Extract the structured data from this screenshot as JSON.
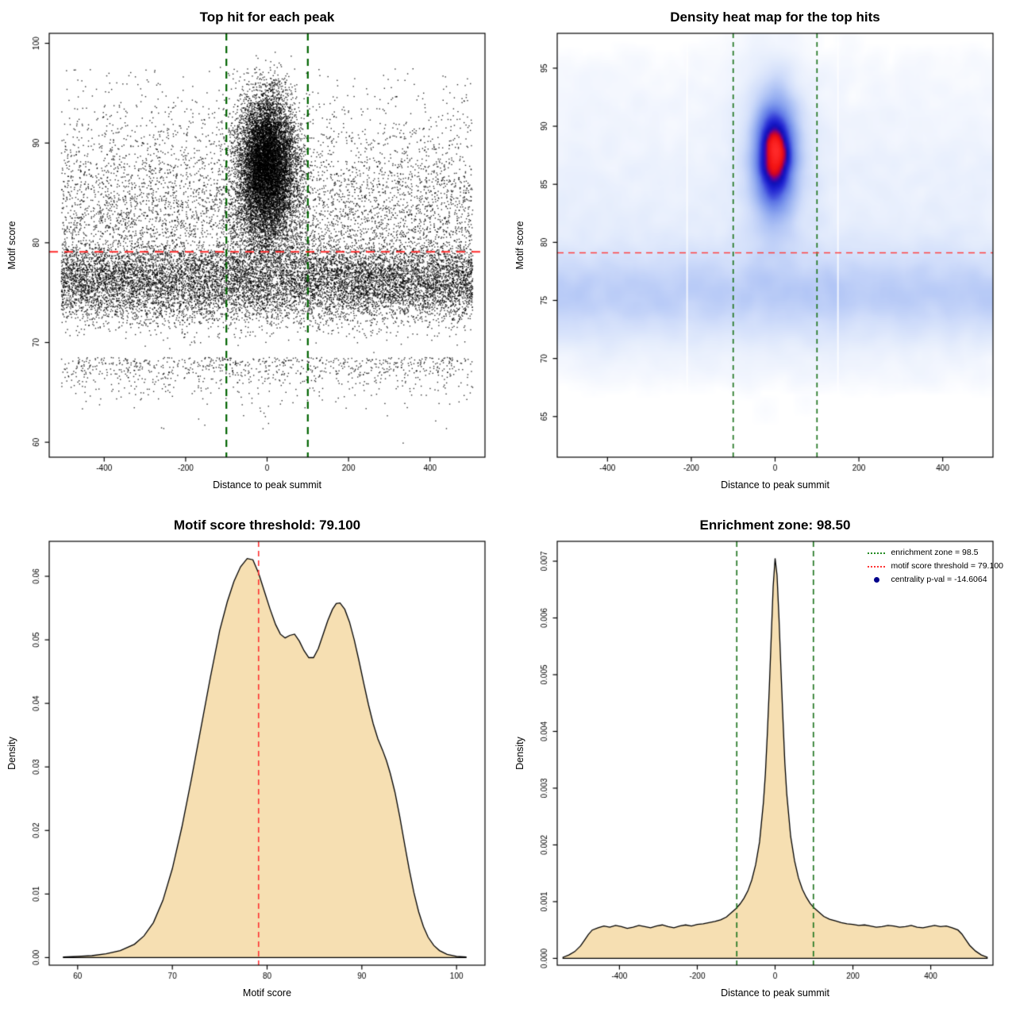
{
  "page": {
    "background": "#ffffff"
  },
  "stats": {
    "motif_score_threshold": 79.1,
    "enrichment_zone": 98.5,
    "centrality_p_val": -14.6064
  },
  "chart_data": [
    {
      "type": "scatter",
      "title": "Top hit for each peak",
      "xlabel": "Distance to peak summit",
      "ylabel": "Motif score",
      "xlim": [
        -535,
        535
      ],
      "ylim": [
        58.5,
        101
      ],
      "xticks": {
        "values": [
          -400,
          -200,
          0,
          200,
          400
        ],
        "labels": [
          "-400",
          "-200",
          "0",
          "200",
          "400"
        ]
      },
      "yticks": {
        "values": [
          60,
          70,
          80,
          90,
          100
        ],
        "labels": [
          "60",
          "70",
          "80",
          "90",
          "100"
        ]
      },
      "point_color": "#000000",
      "point_alpha": 0.8,
      "point_size": 1.4,
      "ref_lines": {
        "vlines": [
          {
            "x": -100,
            "color": "#006400",
            "width": 2.2,
            "dash": [
              9,
              7
            ]
          },
          {
            "x": 100,
            "color": "#006400",
            "width": 2.2,
            "dash": [
              9,
              7
            ]
          }
        ],
        "hlines": [
          {
            "y": 79.1,
            "color": "#ff2a2a",
            "width": 2,
            "dash": [
              11,
              8
            ]
          }
        ]
      },
      "generator": {
        "seed": 1234,
        "components": [
          {
            "name": "central-cluster",
            "n": 8500,
            "x": {
              "dist": "normal",
              "mean": 0,
              "sd": 33
            },
            "y": {
              "dist": "normal",
              "mean": 88.2,
              "sd": 3.3
            },
            "y_range": [
              79.5,
              99.7
            ]
          },
          {
            "name": "central-spread",
            "n": 2500,
            "x": {
              "dist": "normal",
              "mean": 0,
              "sd": 45
            },
            "y": {
              "dist": "normal",
              "mean": 84,
              "sd": 4.5
            },
            "y_range": [
              78,
              99
            ]
          },
          {
            "name": "background-band",
            "n": 12500,
            "x": {
              "dist": "uniform",
              "min": -505,
              "max": 505
            },
            "y": {
              "dist": "normal",
              "mean": 76.3,
              "sd": 2.1
            },
            "y_range": [
              68.5,
              80.5
            ]
          },
          {
            "name": "upper-background",
            "n": 4200,
            "x": {
              "dist": "uniform",
              "min": -505,
              "max": 505
            },
            "y": {
              "dist": "normal",
              "mean": 80,
              "sd": 6.8
            },
            "y_range": [
              80.5,
              97.6
            ]
          },
          {
            "name": "lower-background",
            "n": 900,
            "x": {
              "dist": "uniform",
              "min": -505,
              "max": 505
            },
            "y": {
              "dist": "normal",
              "mean": 69.5,
              "sd": 2.2
            },
            "y_range": [
              62.5,
              68.5
            ]
          },
          {
            "name": "outliers",
            "n": 18,
            "x": {
              "dist": "uniform",
              "min": -490,
              "max": 490
            },
            "y": {
              "dist": "uniform",
              "min": 59.8,
              "max": 65.5
            }
          }
        ]
      }
    },
    {
      "type": "heatmap",
      "title": "Density heat map for the top hits",
      "xlabel": "Distance to peak summit",
      "ylabel": "Motif score",
      "xlim": [
        -520,
        520
      ],
      "ylim": [
        61.5,
        98
      ],
      "xticks": {
        "values": [
          -400,
          -200,
          0,
          200,
          400
        ],
        "labels": [
          "-400",
          "-200",
          "0",
          "200",
          "400"
        ]
      },
      "yticks": {
        "values": [
          65,
          70,
          75,
          80,
          85,
          90,
          95
        ],
        "labels": [
          "65",
          "70",
          "75",
          "80",
          "85",
          "90",
          "95"
        ]
      },
      "grid": {
        "nx": 160,
        "ny": 140
      },
      "blur_radius": 2,
      "blur_passes": 2,
      "gamma": 0.5,
      "colormap": [
        [
          0.0,
          "#ffffff"
        ],
        [
          0.07,
          "#f4f7fe"
        ],
        [
          0.18,
          "#e4ecfc"
        ],
        [
          0.3,
          "#cfdcfa"
        ],
        [
          0.4,
          "#b5c8f6"
        ],
        [
          0.5,
          "#97aff1"
        ],
        [
          0.58,
          "#7b96ec"
        ],
        [
          0.66,
          "#5d75e5"
        ],
        [
          0.72,
          "#3a46da"
        ],
        [
          0.78,
          "#1c1ecf"
        ],
        [
          0.83,
          "#0f0fb4"
        ],
        [
          0.87,
          "#61009b"
        ],
        [
          0.9,
          "#c00030"
        ],
        [
          0.94,
          "#f01111"
        ],
        [
          1.0,
          "#ff2a2a"
        ]
      ],
      "white_gaps": [
        -210,
        150
      ],
      "ref_lines": {
        "vlines": [
          {
            "x": -100,
            "color": "#227722",
            "width": 1.7,
            "dash": [
              6,
              5
            ]
          },
          {
            "x": 100,
            "color": "#227722",
            "width": 1.7,
            "dash": [
              6,
              5
            ]
          }
        ],
        "hlines": [
          {
            "y": 79.1,
            "color": "#ff4040",
            "width": 1.3,
            "dash": [
              8,
              6
            ]
          }
        ]
      },
      "generator": {
        "seed": 987,
        "components": [
          {
            "name": "core",
            "n": 9000,
            "x": {
              "dist": "normal",
              "mean": 0,
              "sd": 27
            },
            "y": {
              "dist": "normal",
              "mean": 87.6,
              "sd": 2.9
            }
          },
          {
            "name": "core-halo",
            "n": 3000,
            "x": {
              "dist": "normal",
              "mean": 0,
              "sd": 60
            },
            "y": {
              "dist": "normal",
              "mean": 85.5,
              "sd": 5.5
            }
          },
          {
            "name": "low-band",
            "n": 14000,
            "x": {
              "dist": "uniform",
              "min": -520,
              "max": 520
            },
            "y": {
              "dist": "normal",
              "mean": 75.6,
              "sd": 2.3
            }
          },
          {
            "name": "haze",
            "n": 7000,
            "x": {
              "dist": "uniform",
              "min": -520,
              "max": 520
            },
            "y": {
              "dist": "normal",
              "mean": 81,
              "sd": 7
            },
            "y_range": [
              68,
              96
            ]
          }
        ]
      }
    },
    {
      "type": "density",
      "title": "Motif score threshold: 79.100",
      "xlabel": "Motif score",
      "ylabel": "Density",
      "xlim": [
        57,
        103
      ],
      "ylim": [
        -0.0012,
        0.0655
      ],
      "xticks": {
        "values": [
          60,
          70,
          80,
          90,
          100
        ],
        "labels": [
          "60",
          "70",
          "80",
          "90",
          "100"
        ]
      },
      "yticks": {
        "values": [
          0,
          0.01,
          0.02,
          0.03,
          0.04,
          0.05,
          0.06
        ],
        "labels": [
          "0.00",
          "0.01",
          "0.02",
          "0.03",
          "0.04",
          "0.05",
          "0.06"
        ]
      },
      "fill": "#f6dfb2",
      "stroke": "#000000",
      "ref_lines": {
        "vlines": [
          {
            "x": 79.1,
            "color": "#ff3333",
            "width": 1.6,
            "dash": [
              7,
              5
            ]
          }
        ]
      },
      "points": [
        [
          58.5,
          0.0001
        ],
        [
          60,
          0.0002
        ],
        [
          61.5,
          0.0003
        ],
        [
          63,
          0.0006
        ],
        [
          64.5,
          0.0011
        ],
        [
          66,
          0.0021
        ],
        [
          67,
          0.0034
        ],
        [
          68,
          0.0055
        ],
        [
          69,
          0.009
        ],
        [
          70,
          0.014
        ],
        [
          71,
          0.0205
        ],
        [
          72,
          0.028
        ],
        [
          73,
          0.036
        ],
        [
          74,
          0.044
        ],
        [
          75,
          0.0515
        ],
        [
          75.8,
          0.056
        ],
        [
          76.5,
          0.0592
        ],
        [
          77.2,
          0.0615
        ],
        [
          77.9,
          0.0628
        ],
        [
          78.5,
          0.0626
        ],
        [
          79.1,
          0.0605
        ],
        [
          79.7,
          0.0577
        ],
        [
          80.3,
          0.0549
        ],
        [
          80.9,
          0.0524
        ],
        [
          81.4,
          0.0509
        ],
        [
          81.9,
          0.0503
        ],
        [
          82.4,
          0.0507
        ],
        [
          82.9,
          0.0509
        ],
        [
          83.4,
          0.0498
        ],
        [
          83.9,
          0.0483
        ],
        [
          84.4,
          0.0472
        ],
        [
          84.9,
          0.0472
        ],
        [
          85.4,
          0.0486
        ],
        [
          85.9,
          0.0508
        ],
        [
          86.4,
          0.053
        ],
        [
          86.9,
          0.0548
        ],
        [
          87.3,
          0.0557
        ],
        [
          87.7,
          0.0558
        ],
        [
          88.2,
          0.0548
        ],
        [
          88.7,
          0.0528
        ],
        [
          89.2,
          0.05
        ],
        [
          89.7,
          0.0467
        ],
        [
          90.2,
          0.0432
        ],
        [
          90.7,
          0.0398
        ],
        [
          91.2,
          0.0368
        ],
        [
          91.7,
          0.0344
        ],
        [
          92.2,
          0.0326
        ],
        [
          92.6,
          0.031
        ],
        [
          93,
          0.029
        ],
        [
          93.5,
          0.026
        ],
        [
          94,
          0.0222
        ],
        [
          94.5,
          0.018
        ],
        [
          95,
          0.0139
        ],
        [
          95.5,
          0.0102
        ],
        [
          96,
          0.0072
        ],
        [
          96.5,
          0.0049
        ],
        [
          97,
          0.0032
        ],
        [
          97.6,
          0.0019
        ],
        [
          98.2,
          0.0011
        ],
        [
          99,
          0.0005
        ],
        [
          100,
          0.0002
        ],
        [
          101,
          0.0001
        ]
      ]
    },
    {
      "type": "density",
      "title": "Enrichment zone: 98.50",
      "xlabel": "Distance to peak summit",
      "ylabel": "Density",
      "xlim": [
        -560,
        560
      ],
      "ylim": [
        -0.00012,
        0.00735
      ],
      "xticks": {
        "values": [
          -400,
          -200,
          0,
          200,
          400
        ],
        "labels": [
          "-400",
          "-200",
          "0",
          "200",
          "400"
        ]
      },
      "yticks": {
        "values": [
          0,
          0.001,
          0.002,
          0.003,
          0.004,
          0.005,
          0.006,
          0.007
        ],
        "labels": [
          "0.000",
          "0.001",
          "0.002",
          "0.003",
          "0.004",
          "0.005",
          "0.006",
          "0.007"
        ]
      },
      "fill": "#f6dfb2",
      "stroke": "#000000",
      "ref_lines": {
        "vlines": [
          {
            "x": -98.5,
            "color": "#227722",
            "width": 1.7,
            "dash": [
              7,
              5
            ]
          },
          {
            "x": 98.5,
            "color": "#227722",
            "width": 1.7,
            "dash": [
              7,
              5
            ]
          }
        ]
      },
      "legend": [
        {
          "marker": "dotted-line",
          "color": "#228B22",
          "label": "enrichment zone = 98.5"
        },
        {
          "marker": "dotted-line",
          "color": "#ff3333",
          "label": "motif score threshold = 79.100"
        },
        {
          "marker": "dot",
          "color": "#00008B",
          "label": "centrality p-val = -14.6064"
        }
      ],
      "points": [
        [
          -545,
          2e-05
        ],
        [
          -530,
          6e-05
        ],
        [
          -515,
          0.00012
        ],
        [
          -500,
          0.00022
        ],
        [
          -490,
          0.00032
        ],
        [
          -480,
          0.00042
        ],
        [
          -470,
          0.0005
        ],
        [
          -455,
          0.00054
        ],
        [
          -440,
          0.00057
        ],
        [
          -425,
          0.00055
        ],
        [
          -410,
          0.00058
        ],
        [
          -395,
          0.00056
        ],
        [
          -380,
          0.00053
        ],
        [
          -365,
          0.00055
        ],
        [
          -350,
          0.00058
        ],
        [
          -335,
          0.00056
        ],
        [
          -320,
          0.00054
        ],
        [
          -305,
          0.00057
        ],
        [
          -290,
          0.00059
        ],
        [
          -275,
          0.00056
        ],
        [
          -260,
          0.00054
        ],
        [
          -245,
          0.00057
        ],
        [
          -230,
          0.00059
        ],
        [
          -215,
          0.00057
        ],
        [
          -200,
          0.0006
        ],
        [
          -185,
          0.00061
        ],
        [
          -170,
          0.00063
        ],
        [
          -155,
          0.00065
        ],
        [
          -140,
          0.00068
        ],
        [
          -125,
          0.00073
        ],
        [
          -110,
          0.00082
        ],
        [
          -100,
          0.00088
        ],
        [
          -90,
          0.00096
        ],
        [
          -80,
          0.00106
        ],
        [
          -70,
          0.00119
        ],
        [
          -60,
          0.00138
        ],
        [
          -50,
          0.00165
        ],
        [
          -40,
          0.00205
        ],
        [
          -30,
          0.00275
        ],
        [
          -25,
          0.00325
        ],
        [
          -20,
          0.00395
        ],
        [
          -15,
          0.00475
        ],
        [
          -10,
          0.00565
        ],
        [
          -5,
          0.00655
        ],
        [
          0,
          0.00705
        ],
        [
          5,
          0.00675
        ],
        [
          10,
          0.006
        ],
        [
          15,
          0.0051
        ],
        [
          20,
          0.00425
        ],
        [
          25,
          0.00345
        ],
        [
          30,
          0.0029
        ],
        [
          40,
          0.00215
        ],
        [
          50,
          0.00172
        ],
        [
          60,
          0.00142
        ],
        [
          70,
          0.00122
        ],
        [
          80,
          0.00108
        ],
        [
          90,
          0.00097
        ],
        [
          100,
          0.00089
        ],
        [
          110,
          0.00083
        ],
        [
          125,
          0.00074
        ],
        [
          140,
          0.00069
        ],
        [
          155,
          0.00066
        ],
        [
          170,
          0.00063
        ],
        [
          185,
          0.00061
        ],
        [
          200,
          0.0006
        ],
        [
          215,
          0.00058
        ],
        [
          230,
          0.00059
        ],
        [
          245,
          0.00057
        ],
        [
          260,
          0.00055
        ],
        [
          275,
          0.00056
        ],
        [
          290,
          0.00058
        ],
        [
          305,
          0.00057
        ],
        [
          320,
          0.00055
        ],
        [
          335,
          0.00056
        ],
        [
          350,
          0.00058
        ],
        [
          365,
          0.00055
        ],
        [
          380,
          0.00054
        ],
        [
          395,
          0.00056
        ],
        [
          410,
          0.00058
        ],
        [
          425,
          0.00056
        ],
        [
          440,
          0.00057
        ],
        [
          455,
          0.00054
        ],
        [
          470,
          0.0005
        ],
        [
          480,
          0.00043
        ],
        [
          490,
          0.00033
        ],
        [
          500,
          0.00023
        ],
        [
          515,
          0.00013
        ],
        [
          530,
          6e-05
        ],
        [
          545,
          2e-05
        ]
      ]
    }
  ]
}
